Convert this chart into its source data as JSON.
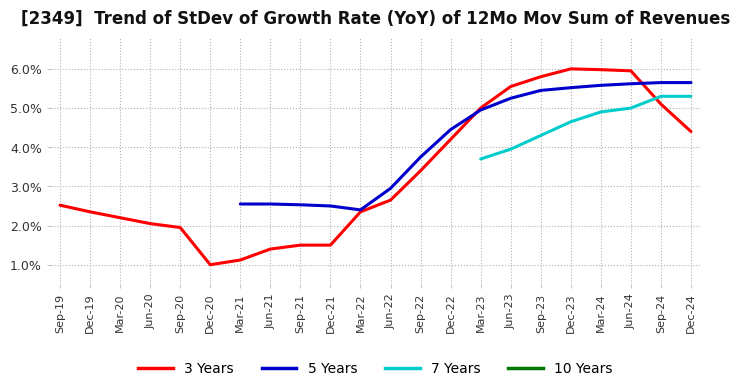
{
  "title": "[2349]  Trend of StDev of Growth Rate (YoY) of 12Mo Mov Sum of Revenues",
  "title_fontsize": 12,
  "background_color": "#ffffff",
  "grid_color": "#aaaaaa",
  "ylim": [
    0.005,
    0.068
  ],
  "yticks": [
    0.01,
    0.02,
    0.03,
    0.04,
    0.05,
    0.06
  ],
  "ytick_labels": [
    "1.0%",
    "2.0%",
    "3.0%",
    "4.0%",
    "5.0%",
    "6.0%"
  ],
  "xtick_labels": [
    "Sep-19",
    "Dec-19",
    "Mar-20",
    "Jun-20",
    "Sep-20",
    "Dec-20",
    "Mar-21",
    "Jun-21",
    "Sep-21",
    "Dec-21",
    "Mar-22",
    "Jun-22",
    "Sep-22",
    "Dec-22",
    "Mar-23",
    "Jun-23",
    "Sep-23",
    "Dec-23",
    "Mar-24",
    "Jun-24",
    "Sep-24",
    "Dec-24"
  ],
  "series": [
    {
      "name": "3 Years",
      "color": "#ff0000",
      "x_idx": [
        0,
        1,
        2,
        3,
        4,
        5,
        6,
        7,
        8,
        9,
        10,
        11,
        12,
        13,
        14,
        15,
        16,
        17,
        18,
        19,
        20,
        21
      ],
      "y": [
        0.0252,
        0.0235,
        0.022,
        0.0205,
        0.0195,
        0.01,
        0.0112,
        0.014,
        0.015,
        0.015,
        0.0235,
        0.0265,
        0.034,
        0.042,
        0.05,
        0.0555,
        0.058,
        0.06,
        0.0598,
        0.0595,
        0.051,
        0.044
      ]
    },
    {
      "name": "5 Years",
      "color": "#0000cc",
      "x_idx": [
        6,
        7,
        8,
        9,
        10,
        11,
        12,
        13,
        14,
        15,
        16,
        17,
        18,
        19,
        20,
        21
      ],
      "y": [
        0.0255,
        0.0255,
        0.0253,
        0.025,
        0.024,
        0.0295,
        0.0375,
        0.0445,
        0.0495,
        0.0525,
        0.0545,
        0.0552,
        0.0558,
        0.0562,
        0.0565,
        0.0565
      ]
    },
    {
      "name": "7 Years",
      "color": "#00cccc",
      "x_idx": [
        14,
        15,
        16,
        17,
        18,
        19,
        20,
        21
      ],
      "y": [
        0.037,
        0.0395,
        0.043,
        0.0465,
        0.049,
        0.05,
        0.053,
        0.053
      ]
    },
    {
      "name": "10 Years",
      "color": "#007700",
      "x_idx": [],
      "y": []
    }
  ],
  "legend_colors": [
    "#ff0000",
    "#0000cc",
    "#00cccc",
    "#007700"
  ],
  "legend_labels": [
    "3 Years",
    "5 Years",
    "7 Years",
    "10 Years"
  ]
}
